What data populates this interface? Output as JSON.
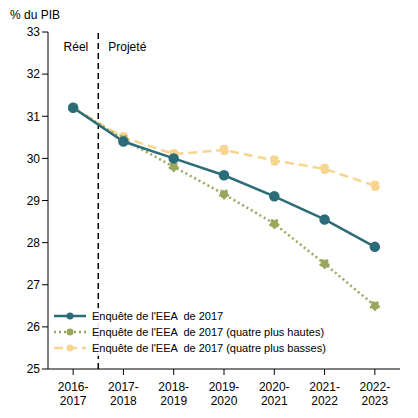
{
  "chart_data": {
    "type": "line",
    "y_label": "% du PIB",
    "annotations": [
      "Réel",
      "Projeté"
    ],
    "categories": [
      "2016-2017",
      "2017-2018",
      "2018-2019",
      "2019-2020",
      "2020-2021",
      "2021-2022",
      "2022-2023"
    ],
    "series": [
      {
        "name": "Enquête de l'EEA  de 2017",
        "color": "#2b6c78",
        "line_style": "solid",
        "marker": "circle",
        "values": [
          31.2,
          30.4,
          30.0,
          29.6,
          29.1,
          28.55,
          27.9
        ]
      },
      {
        "name": "Enquête de l'EEA  de 2017 (quatre plus hautes)",
        "color": "#9ba65d",
        "line_style": "dotted",
        "marker": "circle",
        "values": [
          31.2,
          30.45,
          29.8,
          29.15,
          28.45,
          27.5,
          26.5
        ]
      },
      {
        "name": "Enquête de l'EEA  de 2017 (quatre plus basses)",
        "color": "#f7d58f",
        "line_style": "dashed",
        "marker": "circle",
        "values": [
          31.2,
          30.5,
          30.1,
          30.2,
          29.95,
          29.75,
          29.35
        ]
      }
    ],
    "ylim": [
      25,
      33
    ],
    "yticks": [
      25,
      26,
      27,
      28,
      29,
      30,
      31,
      32,
      33
    ],
    "grid": false,
    "legend": "lower left"
  }
}
